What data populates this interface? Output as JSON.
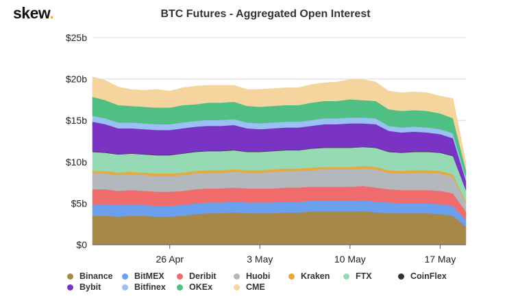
{
  "header": {
    "logo_text": "skew",
    "logo_dot": ".",
    "title": "BTC Futures - Aggregated Open Interest"
  },
  "chart_data": {
    "type": "area",
    "stacked": true,
    "title": "BTC Futures - Aggregated Open Interest",
    "x": [
      "Apr 20",
      "Apr 21",
      "Apr 22",
      "Apr 23",
      "Apr 24",
      "Apr 25",
      "Apr 26",
      "Apr 27",
      "Apr 28",
      "Apr 29",
      "Apr 30",
      "May 1",
      "May 2",
      "May 3",
      "May 4",
      "May 5",
      "May 6",
      "May 7",
      "May 8",
      "May 9",
      "May 10",
      "May 11",
      "May 12",
      "May 13",
      "May 14",
      "May 15",
      "May 16",
      "May 17",
      "May 18",
      "May 19"
    ],
    "x_ticks": [
      "26 Apr",
      "3 May",
      "10 May",
      "17 May"
    ],
    "y_ticks": [
      "$0",
      "$5b",
      "$10b",
      "$15b",
      "$20b",
      "$25b"
    ],
    "ylim": [
      0,
      25
    ],
    "y_unit": "USD billions",
    "grid": true,
    "legend_position": "bottom",
    "series": [
      {
        "name": "Binance",
        "color": "#a88849",
        "values": [
          3.5,
          3.5,
          3.4,
          3.5,
          3.5,
          3.4,
          3.4,
          3.5,
          3.7,
          3.8,
          3.8,
          3.9,
          3.8,
          3.8,
          3.8,
          3.9,
          3.9,
          4.0,
          4.0,
          4.0,
          4.0,
          4.1,
          3.9,
          3.8,
          3.8,
          3.8,
          3.8,
          3.7,
          3.5,
          2.2
        ]
      },
      {
        "name": "BitMEX",
        "color": "#6aa0ee",
        "values": [
          1.4,
          1.4,
          1.4,
          1.4,
          1.3,
          1.3,
          1.3,
          1.3,
          1.3,
          1.3,
          1.3,
          1.3,
          1.3,
          1.3,
          1.3,
          1.3,
          1.3,
          1.3,
          1.3,
          1.3,
          1.3,
          1.3,
          1.3,
          1.3,
          1.2,
          1.2,
          1.2,
          1.2,
          1.2,
          0.8
        ]
      },
      {
        "name": "Deribit",
        "color": "#f06c6c",
        "values": [
          1.8,
          1.8,
          1.7,
          1.7,
          1.7,
          1.7,
          1.7,
          1.7,
          1.7,
          1.7,
          1.7,
          1.7,
          1.7,
          1.7,
          1.7,
          1.7,
          1.7,
          1.7,
          1.7,
          1.7,
          1.7,
          1.7,
          1.7,
          1.6,
          1.6,
          1.6,
          1.6,
          1.6,
          1.5,
          1.0
        ]
      },
      {
        "name": "Huobi",
        "color": "#b4b7bc",
        "values": [
          1.9,
          1.9,
          1.9,
          1.9,
          1.9,
          1.9,
          1.9,
          1.9,
          1.9,
          1.9,
          1.9,
          1.9,
          1.9,
          1.9,
          2.0,
          2.0,
          2.0,
          2.0,
          2.1,
          2.1,
          2.1,
          2.1,
          2.2,
          2.0,
          2.0,
          2.1,
          2.1,
          2.1,
          2.0,
          1.0
        ]
      },
      {
        "name": "Kraken",
        "color": "#e8a93a",
        "values": [
          0.3,
          0.3,
          0.3,
          0.3,
          0.3,
          0.3,
          0.3,
          0.3,
          0.3,
          0.3,
          0.3,
          0.3,
          0.3,
          0.3,
          0.3,
          0.3,
          0.3,
          0.3,
          0.3,
          0.3,
          0.3,
          0.3,
          0.3,
          0.3,
          0.3,
          0.3,
          0.3,
          0.3,
          0.3,
          0.2
        ]
      },
      {
        "name": "FTX",
        "color": "#95dab5",
        "values": [
          2.3,
          2.2,
          2.2,
          2.2,
          2.2,
          2.2,
          2.2,
          2.3,
          2.3,
          2.3,
          2.3,
          2.3,
          2.2,
          2.2,
          2.2,
          2.2,
          2.2,
          2.3,
          2.3,
          2.3,
          2.3,
          2.3,
          2.3,
          2.2,
          2.2,
          2.2,
          2.2,
          2.2,
          2.2,
          1.4
        ]
      },
      {
        "name": "CoinFlex",
        "color": "#333333",
        "values": [
          0.05,
          0.05,
          0.05,
          0.05,
          0.05,
          0.05,
          0.05,
          0.05,
          0.05,
          0.05,
          0.05,
          0.05,
          0.05,
          0.05,
          0.05,
          0.05,
          0.05,
          0.05,
          0.05,
          0.05,
          0.05,
          0.05,
          0.05,
          0.05,
          0.05,
          0.05,
          0.05,
          0.05,
          0.05,
          0.05
        ]
      },
      {
        "name": "Bybit",
        "color": "#7a34c4",
        "values": [
          3.6,
          3.4,
          3.1,
          3.0,
          3.0,
          3.0,
          3.0,
          3.0,
          3.0,
          3.0,
          3.0,
          3.0,
          2.8,
          2.7,
          2.7,
          2.7,
          2.7,
          2.7,
          2.8,
          2.8,
          2.9,
          2.8,
          2.8,
          2.5,
          2.4,
          2.4,
          2.3,
          2.2,
          2.1,
          1.1
        ]
      },
      {
        "name": "Bitfinex",
        "color": "#9bc0f4",
        "values": [
          0.7,
          0.7,
          0.7,
          0.7,
          0.7,
          0.7,
          0.7,
          0.7,
          0.7,
          0.7,
          0.7,
          0.7,
          0.7,
          0.7,
          0.7,
          0.7,
          0.7,
          0.7,
          0.7,
          0.7,
          0.7,
          0.7,
          0.7,
          0.6,
          0.6,
          0.6,
          0.6,
          0.6,
          0.6,
          0.4
        ]
      },
      {
        "name": "OKEx",
        "color": "#4fbf84",
        "values": [
          2.3,
          2.2,
          2.1,
          2.0,
          2.0,
          2.0,
          2.0,
          2.1,
          2.0,
          2.1,
          2.1,
          2.1,
          2.0,
          2.0,
          2.0,
          2.0,
          2.0,
          2.1,
          2.1,
          2.1,
          2.2,
          2.1,
          2.1,
          2.0,
          2.0,
          2.0,
          2.0,
          1.9,
          1.8,
          0.9
        ]
      },
      {
        "name": "CME",
        "color": "#f5d49d",
        "values": [
          2.4,
          2.4,
          2.2,
          2.0,
          2.0,
          2.2,
          2.0,
          2.1,
          2.2,
          2.1,
          2.1,
          2.0,
          2.0,
          2.1,
          2.1,
          2.1,
          2.1,
          2.2,
          2.2,
          2.3,
          2.4,
          2.5,
          2.3,
          2.2,
          2.2,
          2.2,
          2.2,
          2.1,
          2.4,
          0.9
        ]
      }
    ],
    "legend_rows": [
      [
        "Binance",
        "BitMEX",
        "Deribit",
        "Huobi",
        "Kraken",
        "FTX",
        "CoinFlex"
      ],
      [
        "Bybit",
        "Bitfinex",
        "OKEx",
        "CME"
      ]
    ]
  }
}
